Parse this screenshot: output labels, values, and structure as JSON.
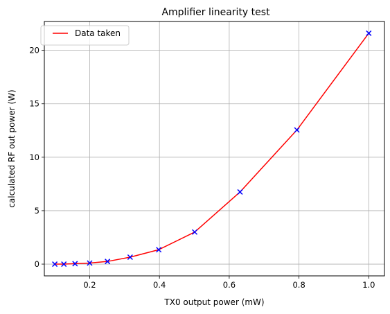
{
  "chart_data": {
    "type": "line",
    "title": "Amplifier linearity test",
    "xlabel": "TX0 output power (mW)",
    "ylabel": "calculated RF out power (W)",
    "xlim": [
      0.07,
      1.045
    ],
    "ylim": [
      -1.1,
      22.7
    ],
    "xticks": [
      0.2,
      0.4,
      0.6,
      0.8,
      1.0
    ],
    "xtick_labels": [
      "0.2",
      "0.4",
      "0.6",
      "0.8",
      "1.0"
    ],
    "yticks": [
      0,
      5,
      10,
      15,
      20
    ],
    "ytick_labels": [
      "0",
      "5",
      "10",
      "15",
      "20"
    ],
    "grid": true,
    "legend": {
      "position": "top-left",
      "entries": [
        "Data taken"
      ]
    },
    "x": [
      0.1,
      0.126,
      0.158,
      0.2,
      0.251,
      0.316,
      0.398,
      0.501,
      0.631,
      0.794,
      1.0
    ],
    "series": [
      {
        "name": "Data taken",
        "values": [
          0.0,
          0.0,
          0.04,
          0.1,
          0.25,
          0.65,
          1.35,
          3.0,
          6.75,
          12.55,
          21.6
        ],
        "line_color": "#ff0000",
        "marker": "x",
        "marker_color": "#0000ff"
      }
    ]
  }
}
